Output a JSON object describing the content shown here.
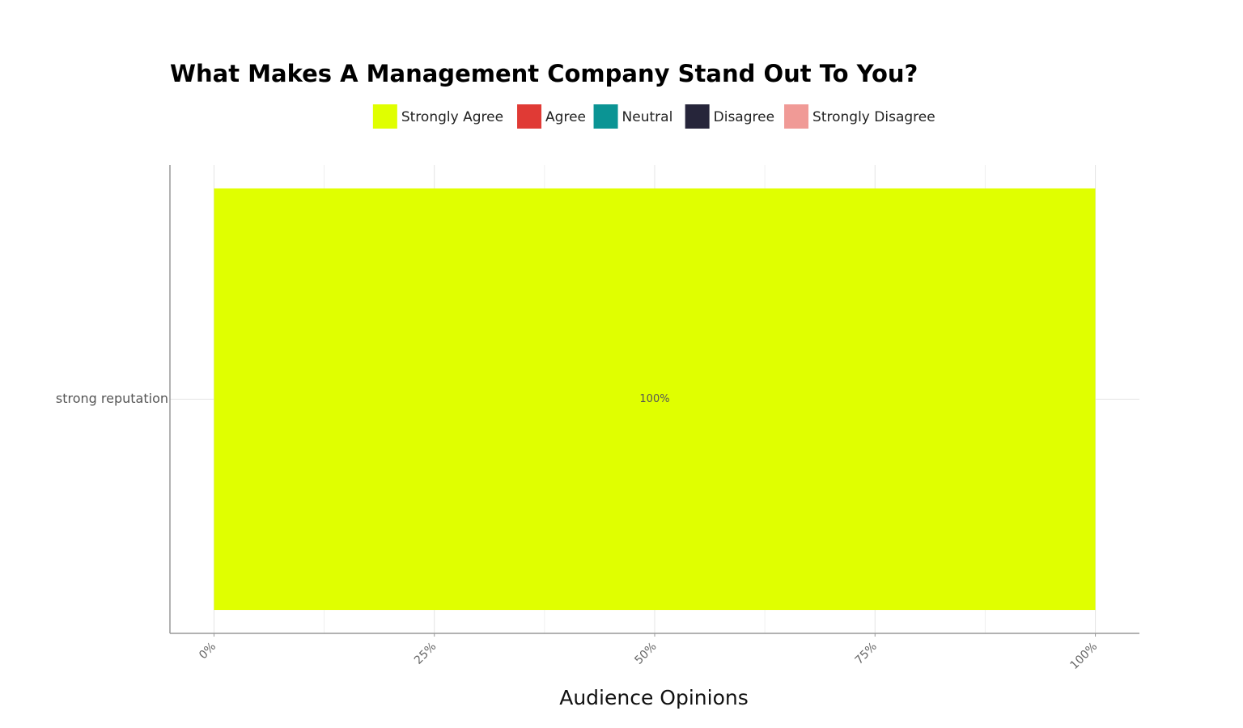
{
  "chart_data": {
    "type": "stacked-hbar",
    "title": "What Makes A Management Company Stand Out To You?",
    "x_label": "Audience Opinions",
    "categories": [
      "strong reputation"
    ],
    "series": [
      {
        "name": "Strongly Agree",
        "color": "#e0ff00",
        "values": [
          100
        ],
        "value_labels": [
          "100%"
        ]
      },
      {
        "name": "Agree",
        "color": "#e03a35",
        "values": [
          0
        ]
      },
      {
        "name": "Neutral",
        "color": "#0b9494",
        "values": [
          0
        ]
      },
      {
        "name": "Disagree",
        "color": "#26253a",
        "values": [
          0
        ]
      },
      {
        "name": "Strongly Disagree",
        "color": "#f09a96",
        "values": [
          0
        ]
      }
    ],
    "xlim": [
      -5,
      105
    ],
    "xticks": [
      {
        "value": 0,
        "label": "0%"
      },
      {
        "value": 25,
        "label": "25%"
      },
      {
        "value": 50,
        "label": "50%"
      },
      {
        "value": 75,
        "label": "75%"
      },
      {
        "value": 100,
        "label": "100%"
      }
    ],
    "grid": true,
    "legend": "top"
  }
}
